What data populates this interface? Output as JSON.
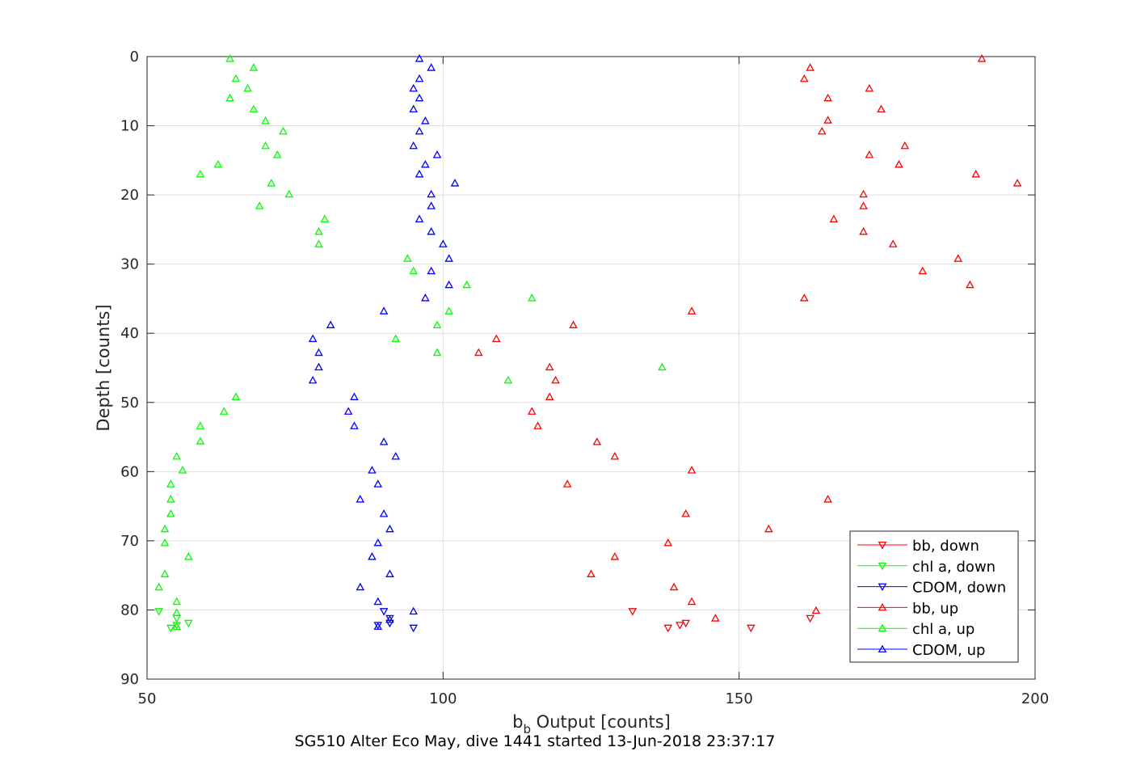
{
  "chart_data": {
    "type": "scatter",
    "xlabel_main": "b",
    "xlabel_sub": "b",
    "xlabel_rest": " Output [counts]",
    "ylabel": "Depth [counts]",
    "caption": "SG510 Alter Eco May, dive 1441 started 13-Jun-2018 23:37:17",
    "xlim": [
      50,
      200
    ],
    "ylim": [
      0,
      90
    ],
    "y_reversed": true,
    "grid": true,
    "xticks": [
      "50",
      "100",
      "150",
      "200"
    ],
    "yticks": [
      "0",
      "10",
      "20",
      "30",
      "40",
      "50",
      "60",
      "70",
      "80",
      "90"
    ],
    "legend_position": "bottom-right",
    "series": [
      {
        "name": "bb, down",
        "color": "#ff0000",
        "marker": "triangle-down",
        "points": [
          [
            132,
            80.2
          ],
          [
            140,
            82.2
          ],
          [
            141,
            81.9
          ],
          [
            138,
            82.6
          ],
          [
            152,
            82.6
          ],
          [
            162,
            81.2
          ]
        ]
      },
      {
        "name": "chl a, down",
        "color": "#00ff00",
        "marker": "triangle-down",
        "points": [
          [
            52,
            80.2
          ],
          [
            55,
            81.2
          ],
          [
            57,
            81.9
          ],
          [
            54,
            82.6
          ],
          [
            55,
            82.2
          ]
        ]
      },
      {
        "name": "CDOM, down",
        "color": "#0000ff",
        "marker": "triangle-down",
        "points": [
          [
            90,
            80.2
          ],
          [
            91,
            81.2
          ],
          [
            91,
            81.9
          ],
          [
            89,
            82.2
          ],
          [
            95,
            82.6
          ]
        ]
      },
      {
        "name": "bb, up",
        "color": "#ff0000",
        "marker": "triangle-up",
        "points": [
          [
            191,
            0.3
          ],
          [
            162,
            1.6
          ],
          [
            161,
            3.2
          ],
          [
            172,
            4.6
          ],
          [
            165,
            6.0
          ],
          [
            174,
            7.6
          ],
          [
            165,
            9.2
          ],
          [
            164,
            10.8
          ],
          [
            178,
            12.9
          ],
          [
            172,
            14.2
          ],
          [
            177,
            15.6
          ],
          [
            190,
            17.0
          ],
          [
            197,
            18.3
          ],
          [
            171,
            19.9
          ],
          [
            171,
            21.6
          ],
          [
            166,
            23.5
          ],
          [
            171,
            25.3
          ],
          [
            176,
            27.1
          ],
          [
            187,
            29.2
          ],
          [
            181,
            31.0
          ],
          [
            189,
            33.0
          ],
          [
            161,
            34.9
          ],
          [
            142,
            36.8
          ],
          [
            122,
            38.8
          ],
          [
            109,
            40.8
          ],
          [
            106,
            42.8
          ],
          [
            118,
            44.9
          ],
          [
            119,
            46.8
          ],
          [
            118,
            49.2
          ],
          [
            115,
            51.3
          ],
          [
            116,
            53.4
          ],
          [
            126,
            55.7
          ],
          [
            129,
            57.8
          ],
          [
            142,
            59.8
          ],
          [
            121,
            61.8
          ],
          [
            165,
            64.0
          ],
          [
            141,
            66.1
          ],
          [
            155,
            68.3
          ],
          [
            138,
            70.3
          ],
          [
            129,
            72.3
          ],
          [
            125,
            74.8
          ],
          [
            139,
            76.7
          ],
          [
            142,
            78.8
          ],
          [
            163,
            80.1
          ],
          [
            146,
            81.2
          ]
        ]
      },
      {
        "name": "chl a, up",
        "color": "#00ff00",
        "marker": "triangle-up",
        "points": [
          [
            64,
            0.3
          ],
          [
            68,
            1.6
          ],
          [
            65,
            3.2
          ],
          [
            67,
            4.6
          ],
          [
            64,
            6.0
          ],
          [
            68,
            7.6
          ],
          [
            70,
            9.3
          ],
          [
            73,
            10.8
          ],
          [
            70,
            12.9
          ],
          [
            72,
            14.2
          ],
          [
            62,
            15.6
          ],
          [
            59,
            17.0
          ],
          [
            71,
            18.3
          ],
          [
            74,
            19.9
          ],
          [
            69,
            21.6
          ],
          [
            80,
            23.5
          ],
          [
            79,
            25.3
          ],
          [
            79,
            27.1
          ],
          [
            94,
            29.2
          ],
          [
            95,
            31.0
          ],
          [
            104,
            33.0
          ],
          [
            115,
            34.9
          ],
          [
            101,
            36.8
          ],
          [
            99,
            38.8
          ],
          [
            92,
            40.8
          ],
          [
            99,
            42.8
          ],
          [
            137,
            44.9
          ],
          [
            111,
            46.8
          ],
          [
            65,
            49.2
          ],
          [
            63,
            51.3
          ],
          [
            59,
            53.4
          ],
          [
            59,
            55.6
          ],
          [
            55,
            57.8
          ],
          [
            56,
            59.8
          ],
          [
            54,
            61.8
          ],
          [
            54,
            64.0
          ],
          [
            54,
            66.1
          ],
          [
            53,
            68.3
          ],
          [
            53,
            70.3
          ],
          [
            57,
            72.3
          ],
          [
            53,
            74.8
          ],
          [
            52,
            76.7
          ],
          [
            55,
            78.8
          ],
          [
            55,
            80.4
          ],
          [
            55,
            82.4
          ]
        ]
      },
      {
        "name": "CDOM, up",
        "color": "#0000ff",
        "marker": "triangle-up",
        "points": [
          [
            96,
            0.3
          ],
          [
            98,
            1.6
          ],
          [
            96,
            3.2
          ],
          [
            95,
            4.6
          ],
          [
            96,
            6.0
          ],
          [
            95,
            7.6
          ],
          [
            97,
            9.3
          ],
          [
            96,
            10.8
          ],
          [
            95,
            12.9
          ],
          [
            99,
            14.2
          ],
          [
            97,
            15.6
          ],
          [
            96,
            17.0
          ],
          [
            102,
            18.3
          ],
          [
            98,
            19.9
          ],
          [
            98,
            21.6
          ],
          [
            96,
            23.5
          ],
          [
            98,
            25.3
          ],
          [
            100,
            27.1
          ],
          [
            101,
            29.2
          ],
          [
            98,
            31.0
          ],
          [
            101,
            33.0
          ],
          [
            97,
            34.9
          ],
          [
            90,
            36.8
          ],
          [
            81,
            38.8
          ],
          [
            78,
            40.8
          ],
          [
            79,
            42.8
          ],
          [
            79,
            44.9
          ],
          [
            78,
            46.8
          ],
          [
            85,
            49.2
          ],
          [
            84,
            51.3
          ],
          [
            85,
            53.4
          ],
          [
            90,
            55.7
          ],
          [
            92,
            57.8
          ],
          [
            88,
            59.8
          ],
          [
            89,
            61.8
          ],
          [
            86,
            64.0
          ],
          [
            90,
            66.1
          ],
          [
            91,
            68.3
          ],
          [
            89,
            70.3
          ],
          [
            88,
            72.3
          ],
          [
            91,
            74.8
          ],
          [
            86,
            76.7
          ],
          [
            89,
            78.8
          ],
          [
            95,
            80.2
          ],
          [
            91,
            81.4
          ],
          [
            89,
            82.4
          ]
        ]
      }
    ]
  }
}
